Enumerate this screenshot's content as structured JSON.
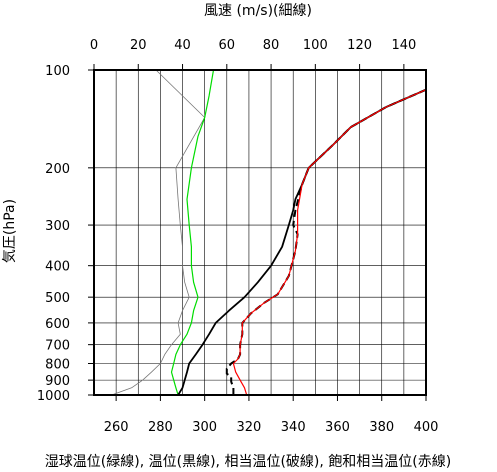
{
  "chart_data": {
    "type": "line",
    "top_axis": {
      "label": "風速 (m/s)(細線)",
      "range": [
        0,
        150
      ],
      "ticks": [
        0,
        20,
        40,
        60,
        80,
        100,
        120,
        140
      ]
    },
    "bottom_axis": {
      "label": "湿球温位(緑線), 温位(黒線), 相当温位(破線), 飽和相当温位(赤線)",
      "range": [
        250,
        400
      ],
      "ticks": [
        260,
        280,
        300,
        320,
        340,
        360,
        380,
        400
      ]
    },
    "y_axis": {
      "label": "気圧(hPa)",
      "scale": "log",
      "reversed": true,
      "range": [
        1000,
        100
      ],
      "ticks": [
        100,
        200,
        300,
        400,
        500,
        600,
        700,
        800,
        900,
        1000
      ]
    },
    "grid": true,
    "series": [
      {
        "axis": "top",
        "color": "#777777",
        "style": "thin",
        "points": [
          [
            8,
            1000
          ],
          [
            17,
            950
          ],
          [
            22,
            900
          ],
          [
            26,
            850
          ],
          [
            30,
            800
          ],
          [
            32,
            750
          ],
          [
            35,
            700
          ],
          [
            39,
            650
          ],
          [
            38,
            600
          ],
          [
            40,
            550
          ],
          [
            43,
            500
          ],
          [
            41,
            450
          ],
          [
            40,
            400
          ],
          [
            40,
            350
          ],
          [
            39,
            300
          ],
          [
            38,
            250
          ],
          [
            37,
            200
          ],
          [
            50,
            140
          ],
          [
            28,
            100
          ]
        ]
      },
      {
        "axis": "bottom",
        "color": "#00dd00",
        "style": "solid",
        "points": [
          [
            288,
            1000
          ],
          [
            287,
            950
          ],
          [
            286,
            900
          ],
          [
            285,
            850
          ],
          [
            286,
            800
          ],
          [
            287,
            750
          ],
          [
            289,
            700
          ],
          [
            292,
            650
          ],
          [
            294,
            600
          ],
          [
            295,
            550
          ],
          [
            297,
            500
          ],
          [
            295,
            450
          ],
          [
            294,
            400
          ],
          [
            294,
            350
          ],
          [
            293,
            300
          ],
          [
            292,
            250
          ],
          [
            294,
            200
          ],
          [
            297,
            160
          ],
          [
            300,
            140
          ],
          [
            302,
            120
          ],
          [
            304,
            100
          ]
        ]
      },
      {
        "axis": "bottom",
        "color": "#000000",
        "style": "solid",
        "points": [
          [
            288,
            1000
          ],
          [
            290,
            950
          ],
          [
            291,
            900
          ],
          [
            292,
            850
          ],
          [
            293,
            800
          ],
          [
            296,
            750
          ],
          [
            299,
            700
          ],
          [
            302,
            650
          ],
          [
            305,
            600
          ],
          [
            311,
            550
          ],
          [
            318,
            500
          ],
          [
            324,
            450
          ],
          [
            330,
            400
          ],
          [
            335,
            350
          ],
          [
            338,
            300
          ],
          [
            340,
            270
          ],
          [
            341,
            250
          ],
          [
            344,
            225
          ],
          [
            347,
            200
          ],
          [
            358,
            170
          ],
          [
            366,
            150
          ],
          [
            382,
            130
          ],
          [
            400,
            115
          ]
        ]
      },
      {
        "axis": "bottom",
        "color": "#000000",
        "style": "dashed",
        "points": [
          [
            313,
            1000
          ],
          [
            313,
            950
          ],
          [
            312,
            910
          ],
          [
            312,
            880
          ],
          [
            310,
            860
          ],
          [
            310,
            830
          ],
          [
            312,
            800
          ],
          [
            315,
            775
          ],
          [
            316,
            750
          ],
          [
            316,
            700
          ],
          [
            317,
            650
          ],
          [
            317,
            600
          ],
          [
            321,
            560
          ],
          [
            327,
            520
          ],
          [
            333,
            490
          ],
          [
            338,
            430
          ],
          [
            341,
            360
          ],
          [
            342,
            320
          ],
          [
            340,
            300
          ],
          [
            341,
            270
          ],
          [
            344,
            225
          ],
          [
            347,
            200
          ],
          [
            358,
            170
          ],
          [
            366,
            150
          ],
          [
            382,
            130
          ],
          [
            400,
            115
          ]
        ]
      },
      {
        "axis": "bottom",
        "color": "#ff0000",
        "style": "solid",
        "points": [
          [
            319,
            1000
          ],
          [
            318,
            950
          ],
          [
            316,
            900
          ],
          [
            314,
            850
          ],
          [
            313,
            800
          ],
          [
            315,
            775
          ],
          [
            316,
            750
          ],
          [
            316,
            700
          ],
          [
            317,
            650
          ],
          [
            317,
            600
          ],
          [
            321,
            560
          ],
          [
            327,
            520
          ],
          [
            333,
            490
          ],
          [
            338,
            430
          ],
          [
            341,
            360
          ],
          [
            342,
            320
          ],
          [
            342,
            300
          ],
          [
            342,
            270
          ],
          [
            344,
            225
          ],
          [
            347,
            200
          ],
          [
            358,
            170
          ],
          [
            366,
            150
          ],
          [
            382,
            130
          ],
          [
            400,
            115
          ]
        ]
      }
    ]
  }
}
